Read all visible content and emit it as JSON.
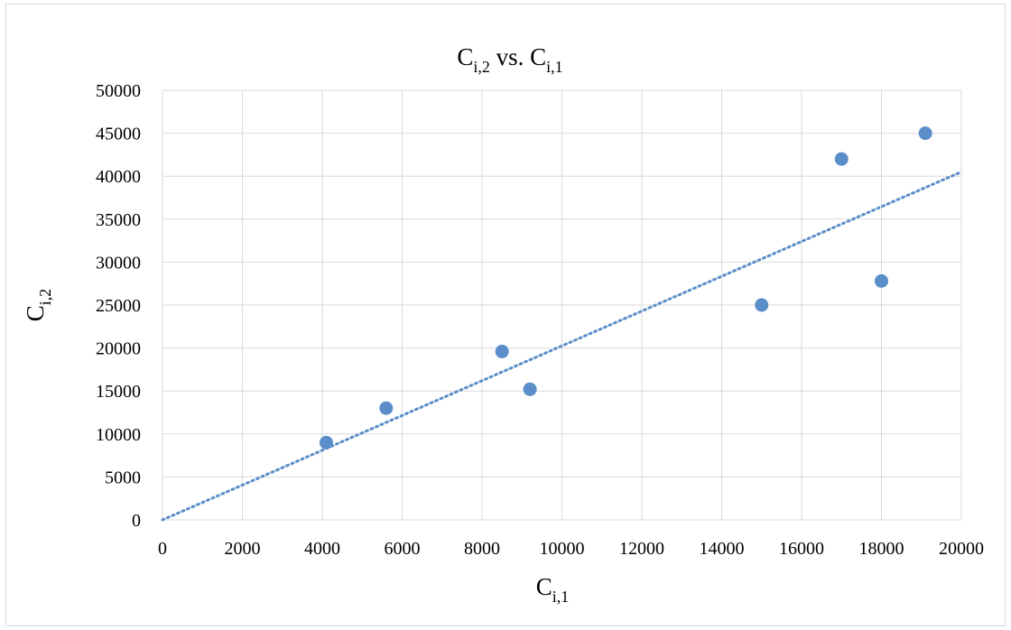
{
  "chart_data": {
    "type": "scatter",
    "title": {
      "main": "C",
      "sub1": "i,2",
      "mid": " vs. C",
      "sub2": "i,1"
    },
    "xlabel": {
      "main": "C",
      "sub": "i,1"
    },
    "ylabel": {
      "main": "C",
      "sub": "i,2"
    },
    "xlim": [
      0,
      20000
    ],
    "ylim": [
      0,
      50000
    ],
    "xticks": [
      "0",
      "2000",
      "4000",
      "6000",
      "8000",
      "10000",
      "12000",
      "14000",
      "16000",
      "18000",
      "20000"
    ],
    "yticks": [
      "0",
      "5000",
      "10000",
      "15000",
      "20000",
      "25000",
      "30000",
      "35000",
      "40000",
      "45000",
      "50000"
    ],
    "grid": true,
    "points": [
      {
        "x": 4100,
        "y": 9000
      },
      {
        "x": 5600,
        "y": 13000
      },
      {
        "x": 8500,
        "y": 19600
      },
      {
        "x": 9200,
        "y": 15200
      },
      {
        "x": 15000,
        "y": 25000
      },
      {
        "x": 17000,
        "y": 42000
      },
      {
        "x": 18000,
        "y": 27800
      },
      {
        "x": 19100,
        "y": 45000
      }
    ],
    "trendline": {
      "type": "linear",
      "style": "dotted",
      "from": [
        0,
        0
      ],
      "to": [
        20000,
        40500
      ]
    },
    "colors": {
      "marker": "#5b8ec9",
      "trendline": "#5b8ec9",
      "grid": "#d9d9d9"
    }
  }
}
